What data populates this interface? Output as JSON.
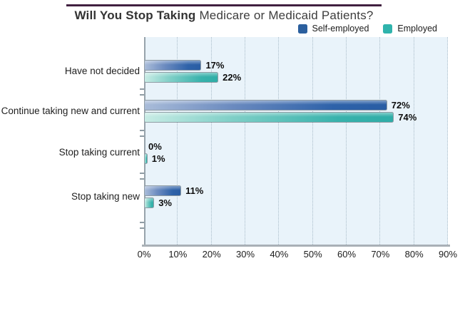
{
  "title": {
    "bold": "Will You Stop Taking ",
    "regular": "Medicare or Medicaid Patients?"
  },
  "legend": [
    {
      "label": "Self-employed",
      "color": "#2b5f9e"
    },
    {
      "label": "Employed",
      "color": "#2fb3ac"
    }
  ],
  "chart_data": {
    "type": "bar",
    "orientation": "horizontal",
    "title": "Will You Stop Taking Medicare or Medicaid Patients?",
    "categories": [
      "Have not decided",
      "Continue taking new and current",
      "Stop taking current",
      "Stop taking new"
    ],
    "series": [
      {
        "name": "Self-employed",
        "color": "#2b5f9e",
        "values": [
          17,
          72,
          0,
          11
        ],
        "value_labels": [
          "17%",
          "72%",
          "0%",
          "11%"
        ]
      },
      {
        "name": "Employed",
        "color": "#2fb3ac",
        "values": [
          22,
          74,
          1,
          3
        ],
        "value_labels": [
          "22%",
          "74%",
          "1%",
          "3%"
        ]
      }
    ],
    "xlim": [
      0,
      90
    ],
    "x_tick_labels": [
      "0%",
      "10%",
      "20%",
      "30%",
      "40%",
      "50%",
      "60%",
      "70%",
      "80%",
      "90%"
    ],
    "grid": "dotted-vertical",
    "legend_position": "top-right",
    "plot_background": "#e9f3fa",
    "title_rule_color": "#412140"
  }
}
